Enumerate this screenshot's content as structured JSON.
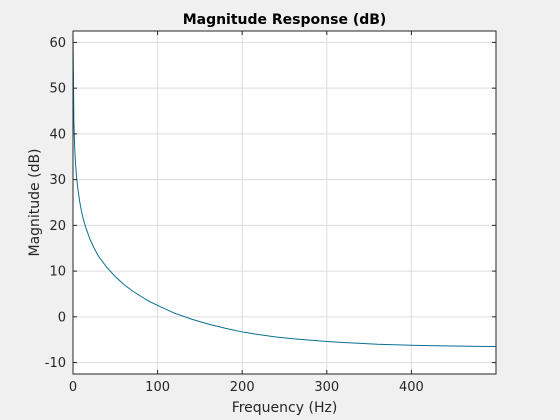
{
  "chart_data": {
    "type": "line",
    "title": "Magnitude Response (dB)",
    "xlabel": "Frequency (Hz)",
    "ylabel": "Magnitude (dB)",
    "xlim": [
      0,
      500
    ],
    "ylim": [
      -12.5,
      62.5
    ],
    "xticks": [
      0,
      100,
      200,
      300,
      400
    ],
    "yticks": [
      -10,
      0,
      10,
      20,
      30,
      40,
      50,
      60
    ],
    "grid": true,
    "legend": "none",
    "colors": {
      "line": "#0a6f8f",
      "axes_bg": "#ffffff",
      "figure_bg": "#f0f0f0",
      "grid": "#dcdcdc",
      "axis": "#262626"
    },
    "series": [
      {
        "x": [
          0,
          1,
          2,
          3,
          4,
          5,
          6,
          8,
          10,
          12,
          15,
          20,
          25,
          30,
          40,
          50,
          60,
          70,
          80,
          90,
          100,
          120,
          140,
          160,
          180,
          200,
          220,
          240,
          260,
          280,
          300,
          320,
          340,
          360,
          380,
          400,
          420,
          440,
          460,
          480,
          500
        ],
        "values": [
          62,
          43,
          37,
          33.5,
          31,
          29.2,
          27.6,
          25.1,
          23.1,
          21.5,
          19.6,
          17.0,
          15.0,
          13.3,
          10.8,
          8.8,
          7.1,
          5.7,
          4.5,
          3.4,
          2.5,
          0.8,
          -0.5,
          -1.6,
          -2.5,
          -3.3,
          -3.9,
          -4.4,
          -4.8,
          -5.1,
          -5.4,
          -5.6,
          -5.8,
          -6.0,
          -6.1,
          -6.2,
          -6.3,
          -6.35,
          -6.4,
          -6.45,
          -6.5
        ]
      }
    ]
  }
}
